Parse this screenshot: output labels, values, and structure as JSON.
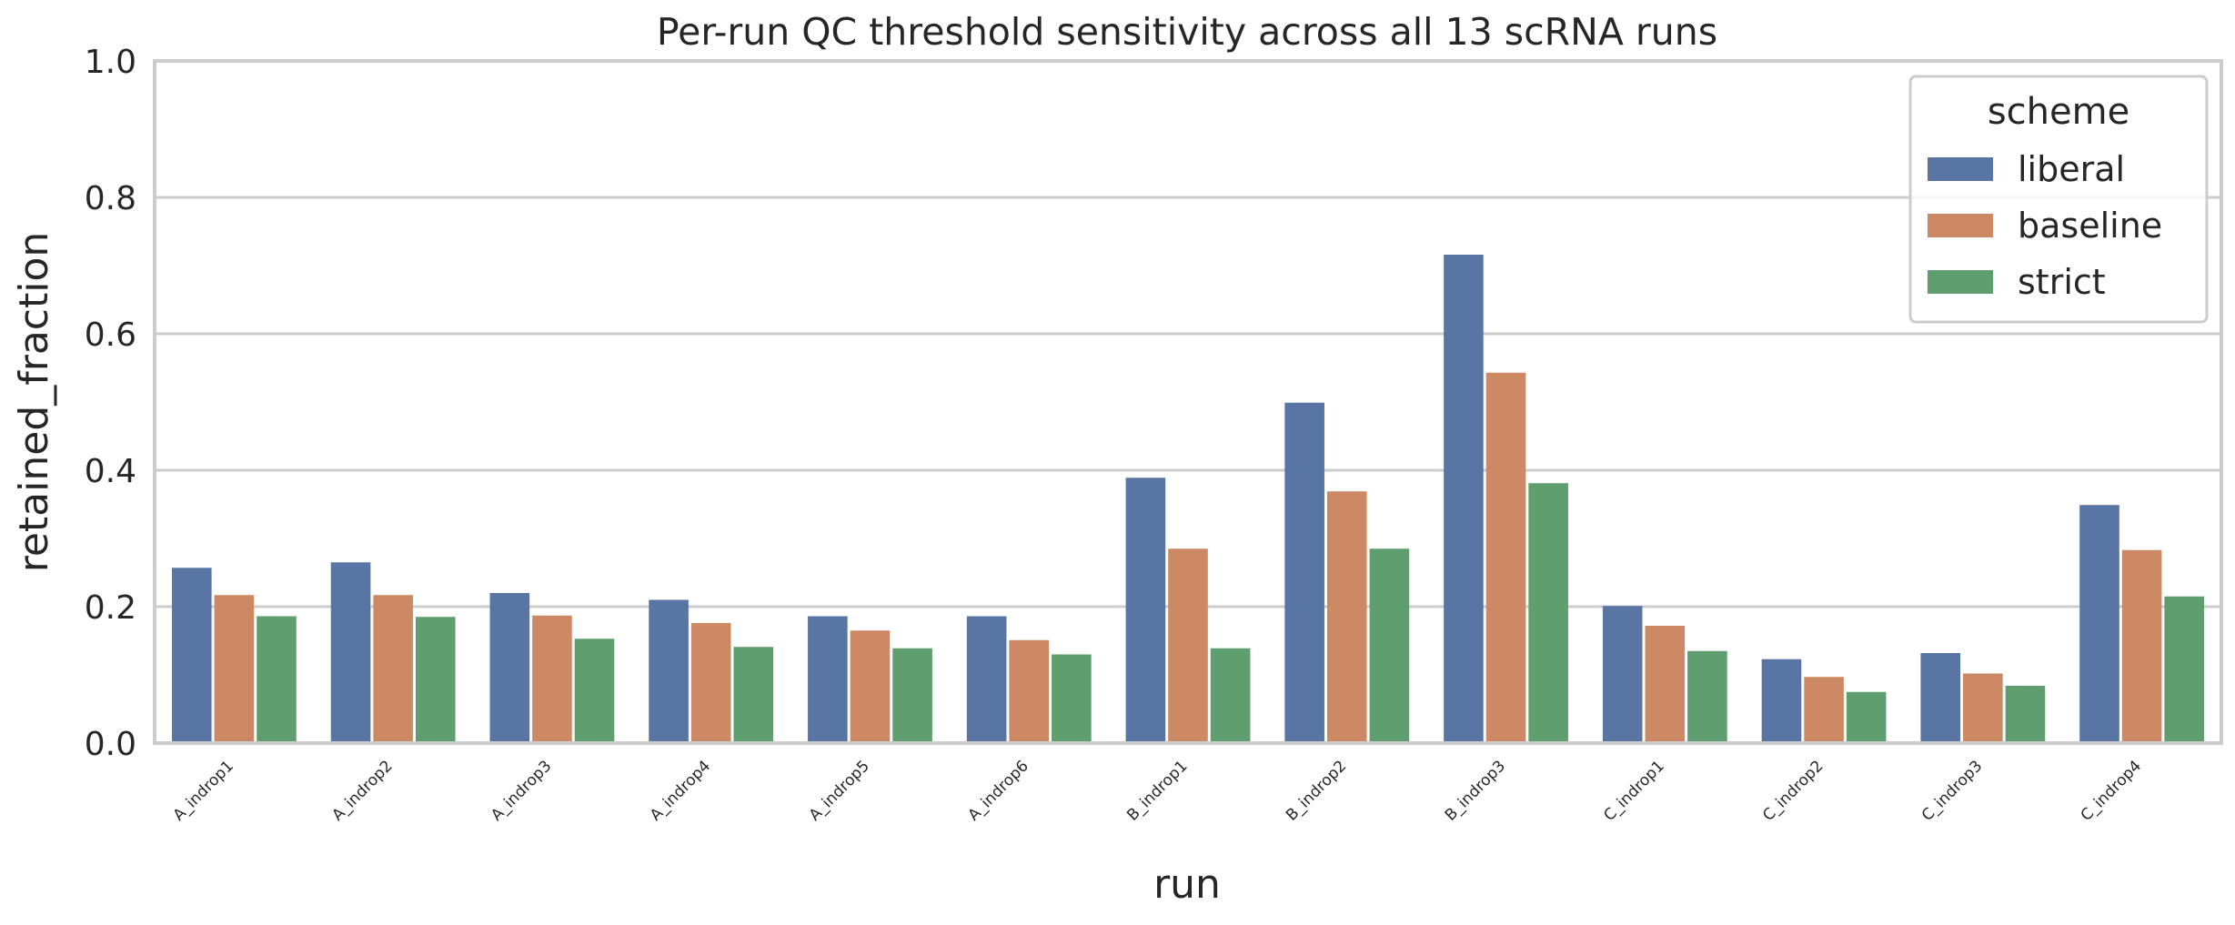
{
  "chart_data": {
    "type": "bar",
    "title": "Per-run QC threshold sensitivity across all 13 scRNA runs",
    "xlabel": "run",
    "ylabel": "retained_fraction",
    "ylim": [
      0,
      1.0
    ],
    "yticks": [
      0.0,
      0.2,
      0.4,
      0.6,
      0.8,
      1.0
    ],
    "grid": true,
    "legend": {
      "title": "scheme",
      "placement": "top-right"
    },
    "categories": [
      "A_indrop1",
      "A_indrop2",
      "A_indrop3",
      "A_indrop4",
      "A_indrop5",
      "A_indrop6",
      "B_indrop1",
      "B_indrop2",
      "B_indrop3",
      "C_indrop1",
      "C_indrop2",
      "C_indrop3",
      "C_indrop4"
    ],
    "series": [
      {
        "name": "liberal",
        "color": "#5875a4",
        "values": [
          0.257,
          0.265,
          0.22,
          0.21,
          0.186,
          0.186,
          0.389,
          0.499,
          0.716,
          0.201,
          0.123,
          0.132,
          0.349
        ]
      },
      {
        "name": "baseline",
        "color": "#cc8963",
        "values": [
          0.217,
          0.217,
          0.187,
          0.176,
          0.165,
          0.151,
          0.285,
          0.369,
          0.543,
          0.172,
          0.097,
          0.102,
          0.283
        ]
      },
      {
        "name": "strict",
        "color": "#5f9e6e",
        "values": [
          0.186,
          0.185,
          0.153,
          0.141,
          0.139,
          0.13,
          0.139,
          0.285,
          0.381,
          0.135,
          0.075,
          0.084,
          0.215
        ]
      }
    ]
  }
}
